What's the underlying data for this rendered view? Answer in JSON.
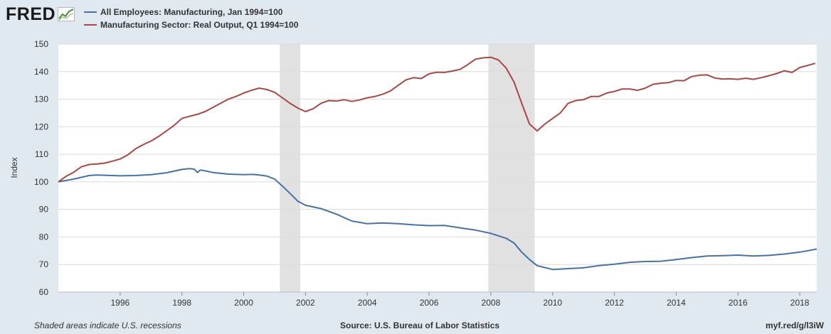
{
  "logo": {
    "text": "FRED",
    "icon": "chart-line-icon"
  },
  "colors": {
    "employment": "#4572a7",
    "output": "#aa4643",
    "recession": "#e1e1e1",
    "plot_bg": "#ffffff",
    "grid": "#dcdcdc"
  },
  "chart_data": {
    "type": "line",
    "title": "",
    "xlabel": "",
    "ylabel": "Index",
    "xlim": [
      1994.0,
      2018.55
    ],
    "ylim": [
      60,
      150
    ],
    "yticks": [
      "60",
      "70",
      "80",
      "90",
      "100",
      "110",
      "120",
      "130",
      "140",
      "150"
    ],
    "xticks": [
      "1996",
      "1998",
      "2000",
      "2002",
      "2004",
      "2006",
      "2008",
      "2010",
      "2012",
      "2014",
      "2016",
      "2018"
    ],
    "recessions": [
      [
        2001.17,
        2001.83
      ],
      [
        2007.92,
        2009.42
      ]
    ],
    "series": [
      {
        "name": "All Employees: Manufacturing, Jan 1994=100",
        "color": "#4572a7",
        "x": [
          1994.0,
          1994.5,
          1995.0,
          1995.25,
          1995.5,
          1996.0,
          1996.5,
          1997.0,
          1997.5,
          1998.0,
          1998.25,
          1998.4,
          1998.5,
          1998.6,
          1998.75,
          1999.0,
          1999.5,
          2000.0,
          2000.3,
          2000.5,
          2000.75,
          2001.0,
          2001.25,
          2001.5,
          2001.75,
          2002.0,
          2002.5,
          2003.0,
          2003.5,
          2004.0,
          2004.5,
          2005.0,
          2005.5,
          2006.0,
          2006.5,
          2007.0,
          2007.5,
          2008.0,
          2008.5,
          2008.75,
          2009.0,
          2009.25,
          2009.5,
          2010.0,
          2010.5,
          2011.0,
          2011.5,
          2012.0,
          2012.5,
          2013.0,
          2013.5,
          2014.0,
          2014.5,
          2015.0,
          2015.5,
          2016.0,
          2016.5,
          2017.0,
          2017.5,
          2018.0,
          2018.55
        ],
        "values": [
          100,
          101,
          102.3,
          102.5,
          102.4,
          102.2,
          102.3,
          102.6,
          103.3,
          104.5,
          104.8,
          104.6,
          103.4,
          104.3,
          104,
          103.4,
          102.8,
          102.6,
          102.7,
          102.5,
          102.1,
          101,
          98.5,
          95.8,
          93,
          91.5,
          90.3,
          88.3,
          85.8,
          84.8,
          85.1,
          84.8,
          84.4,
          84.1,
          84.2,
          83.3,
          82.5,
          81.3,
          79.5,
          77.8,
          74.5,
          71.8,
          69.6,
          68.2,
          68.5,
          68.8,
          69.6,
          70.1,
          70.8,
          71.1,
          71.2,
          71.8,
          72.5,
          73.1,
          73.2,
          73.4,
          73.1,
          73.3,
          73.8,
          74.5,
          75.6
        ]
      },
      {
        "name": "Manufacturing Sector: Real Output, Q1 1994=100",
        "color": "#aa4643",
        "x": [
          1994.0,
          1994.25,
          1994.5,
          1994.75,
          1995.0,
          1995.25,
          1995.5,
          1995.75,
          1996.0,
          1996.25,
          1996.5,
          1996.75,
          1997.0,
          1997.25,
          1997.5,
          1997.75,
          1998.0,
          1998.25,
          1998.5,
          1998.75,
          1999.0,
          1999.25,
          1999.5,
          1999.75,
          2000.0,
          2000.25,
          2000.5,
          2000.75,
          2001.0,
          2001.25,
          2001.5,
          2001.75,
          2002.0,
          2002.25,
          2002.5,
          2002.75,
          2003.0,
          2003.25,
          2003.5,
          2003.75,
          2004.0,
          2004.25,
          2004.5,
          2004.75,
          2005.0,
          2005.25,
          2005.5,
          2005.75,
          2006.0,
          2006.25,
          2006.5,
          2006.75,
          2007.0,
          2007.25,
          2007.5,
          2007.75,
          2008.0,
          2008.25,
          2008.5,
          2008.75,
          2009.0,
          2009.25,
          2009.5,
          2009.75,
          2010.0,
          2010.25,
          2010.5,
          2010.75,
          2011.0,
          2011.25,
          2011.5,
          2011.75,
          2012.0,
          2012.25,
          2012.5,
          2012.75,
          2013.0,
          2013.25,
          2013.5,
          2013.75,
          2014.0,
          2014.25,
          2014.5,
          2014.75,
          2015.0,
          2015.25,
          2015.5,
          2015.75,
          2016.0,
          2016.25,
          2016.5,
          2016.75,
          2017.0,
          2017.25,
          2017.5,
          2017.75,
          2018.0,
          2018.25,
          2018.5
        ],
        "values": [
          100,
          102,
          103.5,
          105.5,
          106.3,
          106.5,
          106.8,
          107.5,
          108.3,
          109.8,
          112,
          113.5,
          114.8,
          116.5,
          118.5,
          120.5,
          123,
          123.8,
          124.5,
          125.5,
          127,
          128.5,
          130,
          131,
          132.2,
          133.2,
          134,
          133.5,
          132.5,
          130.5,
          128.5,
          126.8,
          125.5,
          126.5,
          128.5,
          129.5,
          129.3,
          129.8,
          129.2,
          129.7,
          130.5,
          131,
          131.8,
          133,
          135,
          137,
          137.8,
          137.5,
          139.2,
          139.8,
          139.7,
          140.2,
          140.8,
          142.5,
          144.5,
          145,
          145.2,
          144.2,
          141.2,
          136.2,
          128.5,
          121,
          118.5,
          121,
          123,
          125,
          128.5,
          129.5,
          129.8,
          131,
          131,
          132.2,
          132.8,
          133.7,
          133.7,
          133.2,
          134,
          135.4,
          135.8,
          136,
          136.8,
          136.7,
          138.2,
          138.7,
          138.8,
          137.7,
          137.3,
          137.4,
          137.2,
          137.6,
          137.2,
          137.8,
          138.5,
          139.3,
          140.3,
          139.7,
          141.5,
          142.2,
          143
        ]
      }
    ]
  },
  "footer": {
    "note": "Shaded areas indicate U.S. recessions",
    "source": "Source: U.S. Bureau of Labor Statistics",
    "link": "myf.red/g/l3iW"
  }
}
